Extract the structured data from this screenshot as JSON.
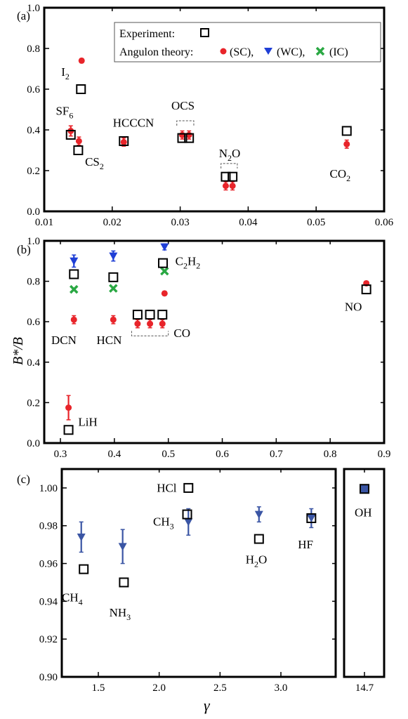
{
  "colors": {
    "experiment": "#000000",
    "sc": "#e8242a",
    "wc": "#1f3fd6",
    "ic": "#2aa843",
    "c_wc": "#3a55a4"
  },
  "legend": {
    "experiment_label": "Experiment:",
    "theory_label": "Angulon theory:",
    "sc_label": "(SC),",
    "wc_label": "(WC),",
    "ic_label": "(IC)"
  },
  "shared_xlabel": "γ",
  "shared_ylabel": "B*/B",
  "chart_data": [
    {
      "panel": "(a)",
      "type": "scatter",
      "xlim": [
        0.01,
        0.06
      ],
      "ylim": [
        0.0,
        1.0
      ],
      "xticks": [
        "0.01",
        "0.02",
        "0.03",
        "0.04",
        "0.05",
        "0.06"
      ],
      "yticks": [
        "0.0",
        "0.2",
        "0.4",
        "0.6",
        "0.8",
        "1.0"
      ],
      "series": [
        {
          "name": "Experiment",
          "marker": "square",
          "points": [
            {
              "x": 0.0154,
              "y": 0.6
            },
            {
              "x": 0.0139,
              "y": 0.376
            },
            {
              "x": 0.015,
              "y": 0.3
            },
            {
              "x": 0.0217,
              "y": 0.345
            },
            {
              "x": 0.0303,
              "y": 0.36
            },
            {
              "x": 0.0313,
              "y": 0.36
            },
            {
              "x": 0.0367,
              "y": 0.17
            },
            {
              "x": 0.0377,
              "y": 0.17
            },
            {
              "x": 0.0545,
              "y": 0.395
            }
          ]
        },
        {
          "name": "(SC)",
          "marker": "circle",
          "points": [
            {
              "x": 0.0155,
              "y": 0.74,
              "err": 0.01
            },
            {
              "x": 0.0139,
              "y": 0.395,
              "err": 0.025
            },
            {
              "x": 0.0151,
              "y": 0.345,
              "err": 0.02
            },
            {
              "x": 0.0217,
              "y": 0.34,
              "err": 0.02
            },
            {
              "x": 0.0303,
              "y": 0.375,
              "err": 0.02
            },
            {
              "x": 0.0313,
              "y": 0.375,
              "err": 0.02
            },
            {
              "x": 0.0367,
              "y": 0.125,
              "err": 0.02
            },
            {
              "x": 0.0377,
              "y": 0.125,
              "err": 0.02
            },
            {
              "x": 0.0545,
              "y": 0.33,
              "err": 0.02
            }
          ]
        }
      ],
      "annotations": [
        {
          "base": "I",
          "sub": "2",
          "x": 0.0125,
          "y": 0.665
        },
        {
          "base": "SF",
          "sub": "6",
          "x": 0.0117,
          "y": 0.475
        },
        {
          "base": "CS",
          "sub": "2",
          "x": 0.016,
          "y": 0.225
        },
        {
          "base": "HCCCN",
          "sub": "",
          "x": 0.0201,
          "y": 0.415
        },
        {
          "base": "OCS",
          "sub": "",
          "x": 0.0287,
          "y": 0.5
        },
        {
          "base": "N",
          "sub": "2",
          "tail": "O",
          "x": 0.0357,
          "y": 0.265
        },
        {
          "base": "CO",
          "sub": "2",
          "x": 0.052,
          "y": 0.165
        }
      ],
      "brackets": [
        {
          "x1": 0.0295,
          "x2": 0.032,
          "y": 0.445,
          "dir": "down"
        },
        {
          "x1": 0.036,
          "x2": 0.0384,
          "y": 0.235,
          "dir": "down"
        }
      ]
    },
    {
      "panel": "(b)",
      "type": "scatter",
      "xlim": [
        0.27,
        0.9
      ],
      "ylim": [
        0.0,
        1.0
      ],
      "xticks": [
        "0.3",
        "0.4",
        "0.5",
        "0.6",
        "0.7",
        "0.8",
        "0.9"
      ],
      "yticks": [
        "0.0",
        "0.2",
        "0.4",
        "0.6",
        "0.8",
        "1.0"
      ],
      "series": [
        {
          "name": "Experiment",
          "marker": "square",
          "points": [
            {
              "x": 0.325,
              "y": 0.835
            },
            {
              "x": 0.398,
              "y": 0.82
            },
            {
              "x": 0.49,
              "y": 0.89
            },
            {
              "x": 0.443,
              "y": 0.635
            },
            {
              "x": 0.466,
              "y": 0.635
            },
            {
              "x": 0.489,
              "y": 0.635
            },
            {
              "x": 0.867,
              "y": 0.76
            },
            {
              "x": 0.315,
              "y": 0.065
            }
          ]
        },
        {
          "name": "(SC)",
          "marker": "circle",
          "points": [
            {
              "x": 0.325,
              "y": 0.61,
              "err": 0.02
            },
            {
              "x": 0.398,
              "y": 0.61,
              "err": 0.02
            },
            {
              "x": 0.493,
              "y": 0.74,
              "err": 0.01
            },
            {
              "x": 0.443,
              "y": 0.59,
              "err": 0.02
            },
            {
              "x": 0.466,
              "y": 0.59,
              "err": 0.02
            },
            {
              "x": 0.489,
              "y": 0.59,
              "err": 0.02
            },
            {
              "x": 0.867,
              "y": 0.79,
              "err": 0.01
            },
            {
              "x": 0.315,
              "y": 0.175,
              "err": 0.06
            }
          ]
        },
        {
          "name": "(WC)",
          "marker": "triangle-down",
          "points": [
            {
              "x": 0.325,
              "y": 0.9,
              "err": 0.03
            },
            {
              "x": 0.398,
              "y": 0.925,
              "err": 0.025
            },
            {
              "x": 0.493,
              "y": 0.97,
              "err": 0.015
            }
          ]
        },
        {
          "name": "(IC)",
          "marker": "cross",
          "points": [
            {
              "x": 0.325,
              "y": 0.76
            },
            {
              "x": 0.398,
              "y": 0.765
            },
            {
              "x": 0.493,
              "y": 0.85
            }
          ]
        }
      ],
      "annotations": [
        {
          "base": "C",
          "sub": "2",
          "tail": "H",
          "sub2": "2",
          "x": 0.513,
          "y": 0.88
        },
        {
          "base": "DCN",
          "sub": "",
          "x": 0.283,
          "y": 0.49
        },
        {
          "base": "HCN",
          "sub": "",
          "x": 0.367,
          "y": 0.49
        },
        {
          "base": "CO",
          "sub": "",
          "x": 0.51,
          "y": 0.525
        },
        {
          "base": "NO",
          "sub": "",
          "x": 0.827,
          "y": 0.655
        },
        {
          "base": "LiH",
          "sub": "",
          "x": 0.333,
          "y": 0.085
        }
      ],
      "brackets": [
        {
          "x1": 0.432,
          "x2": 0.5,
          "y": 0.53,
          "dir": "up"
        }
      ]
    },
    {
      "panel": "(c)",
      "type": "scatter",
      "xlim": [
        1.2,
        3.45
      ],
      "ylim": [
        0.9,
        1.01
      ],
      "xticks": [
        "1.5",
        "2.0",
        "2.5",
        "3.0"
      ],
      "yticks": [
        "0.90",
        "0.92",
        "0.94",
        "0.96",
        "0.98",
        "1.00"
      ],
      "series": [
        {
          "name": "Experiment",
          "marker": "square",
          "points": [
            {
              "x": 1.38,
              "y": 0.957
            },
            {
              "x": 1.71,
              "y": 0.95
            },
            {
              "x": 2.24,
              "y": 1.0
            },
            {
              "x": 2.23,
              "y": 0.986
            },
            {
              "x": 2.82,
              "y": 0.973
            },
            {
              "x": 3.25,
              "y": 0.984
            }
          ]
        },
        {
          "name": "(WC)",
          "marker": "triangle-down",
          "points": [
            {
              "x": 1.36,
              "y": 0.974,
              "err": 0.008
            },
            {
              "x": 1.7,
              "y": 0.969,
              "err": 0.009
            },
            {
              "x": 2.24,
              "y": 0.982,
              "err": 0.007
            },
            {
              "x": 2.82,
              "y": 0.986,
              "err": 0.004
            },
            {
              "x": 3.25,
              "y": 0.984,
              "err": 0.005
            }
          ]
        }
      ],
      "annotations": [
        {
          "base": "CH",
          "sub": "4",
          "x": 1.2,
          "y": 0.94
        },
        {
          "base": "NH",
          "sub": "3",
          "x": 1.59,
          "y": 0.932
        },
        {
          "base": "HCl",
          "sub": "",
          "x": 1.98,
          "y": 0.998
        },
        {
          "base": "CH",
          "sub": "3",
          "x": 1.95,
          "y": 0.98
        },
        {
          "base": "H",
          "sub": "2",
          "tail": "O",
          "x": 2.71,
          "y": 0.96
        },
        {
          "base": "HF",
          "sub": "",
          "x": 3.14,
          "y": 0.968
        }
      ]
    },
    {
      "panel": "(c) inset",
      "type": "scatter",
      "xticks": [
        "14.7"
      ],
      "ylim": [
        0.9,
        1.01
      ],
      "series": [
        {
          "name": "Experiment",
          "marker": "square",
          "points": [
            {
              "x": 14.7,
              "y": 0.9995
            }
          ]
        },
        {
          "name": "(WC)",
          "marker": "triangle-down",
          "points": [
            {
              "x": 14.7,
              "y": 0.9995
            }
          ]
        }
      ],
      "annotations": [
        {
          "base": "OH",
          "sub": "",
          "x": 14.7,
          "y": 0.985
        }
      ]
    }
  ]
}
